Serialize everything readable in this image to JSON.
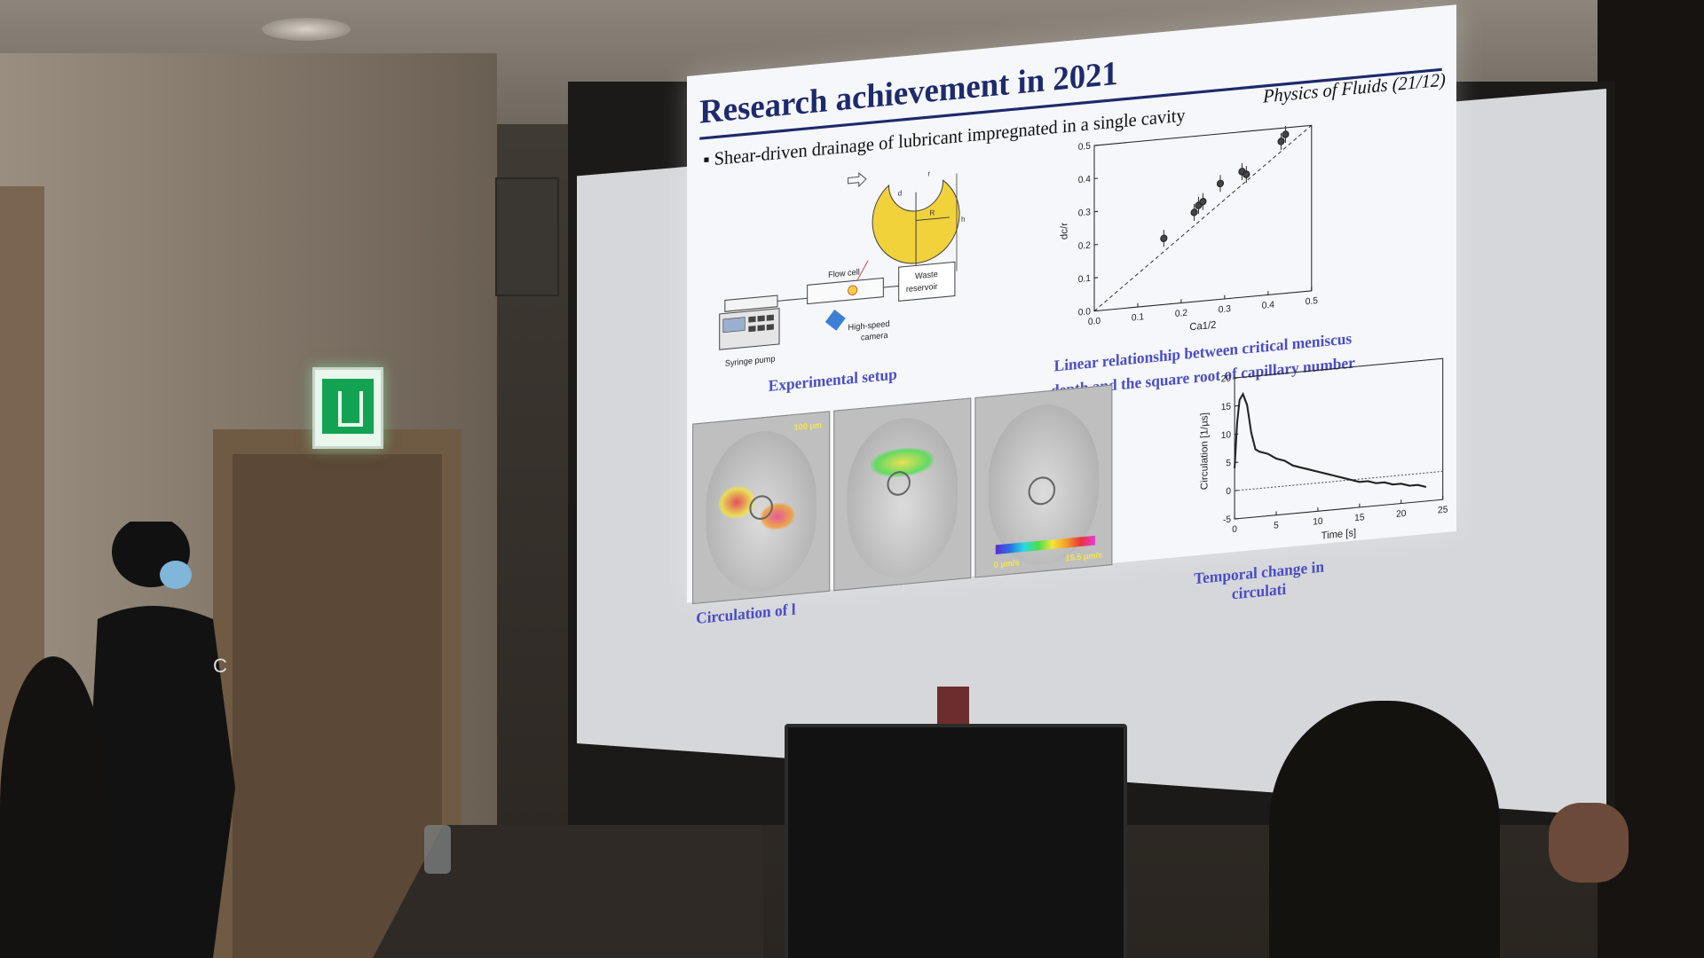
{
  "slide": {
    "title": "Research achievement in 2021",
    "subtitle": "▪ Shear-driven drainage of lubricant impregnated in a single cavity",
    "journal": "Physics of Fluids (21/12)",
    "setup": {
      "caption": "Experimental setup",
      "labels": {
        "flow_cell": "Flow cell",
        "waste": "Waste",
        "reservoir": "reservoir",
        "syringe_pump": "Syringe pump",
        "camera_line1": "High-speed",
        "camera_line2": "camera",
        "dim_d": "d",
        "dim_r": "r",
        "dim_R": "R",
        "dim_h": "h"
      },
      "colors": {
        "cavity": "#f2d23b",
        "camera": "#3d7fd6"
      }
    },
    "chart1_caption_line1": "Linear relationship between critical meniscus",
    "chart1_caption_line2": "depth and the square root of capillary number",
    "piv": {
      "caption": "Circulation of l",
      "scale_label": "100 µm",
      "cbar_low": "0 µm/s",
      "cbar_high": "15.5 µm/s"
    },
    "chart2_caption_line1": "Temporal change in",
    "chart2_caption_line2": "circulati"
  },
  "chart_data": [
    {
      "type": "scatter",
      "xlabel": "Ca1/2",
      "ylabel": "dc/r",
      "xlim": [
        0.0,
        0.5
      ],
      "ylim": [
        0.0,
        0.5
      ],
      "xticks": [
        "0.0",
        "0.1",
        "0.2",
        "0.3",
        "0.4",
        "0.5"
      ],
      "yticks": [
        "0.0",
        "0.1",
        "0.2",
        "0.3",
        "0.4",
        "0.5"
      ],
      "x": [
        0.16,
        0.23,
        0.24,
        0.25,
        0.29,
        0.34,
        0.35,
        0.43,
        0.44
      ],
      "y": [
        0.2,
        0.27,
        0.29,
        0.3,
        0.35,
        0.38,
        0.37,
        0.46,
        0.48
      ],
      "fit_line": {
        "x": [
          0.0,
          0.5
        ],
        "y": [
          0.0,
          0.55
        ]
      }
    },
    {
      "type": "line",
      "xlabel": "Time [s]",
      "ylabel": "Circulation [1/µs]",
      "xlim": [
        0,
        25
      ],
      "ylim": [
        -5,
        20
      ],
      "xticks": [
        "0",
        "5",
        "10",
        "15",
        "20",
        "25"
      ],
      "yticks": [
        "-5",
        "0",
        "5",
        "10",
        "15",
        "20"
      ],
      "x": [
        0,
        0.3,
        0.6,
        1,
        1.5,
        2,
        2.5,
        3,
        4,
        5,
        6,
        7,
        8,
        9,
        10,
        11,
        12,
        13,
        14,
        15,
        16,
        17,
        18,
        19,
        20,
        21,
        22,
        23
      ],
      "y": [
        4,
        12,
        16,
        17,
        15,
        10,
        7,
        6.5,
        6,
        5,
        4.5,
        3.5,
        3,
        2.5,
        2,
        1.5,
        1,
        0.5,
        0,
        -0.5,
        -0.5,
        -1,
        -1,
        -1.5,
        -1.5,
        -2,
        -2,
        -2.5
      ]
    }
  ]
}
